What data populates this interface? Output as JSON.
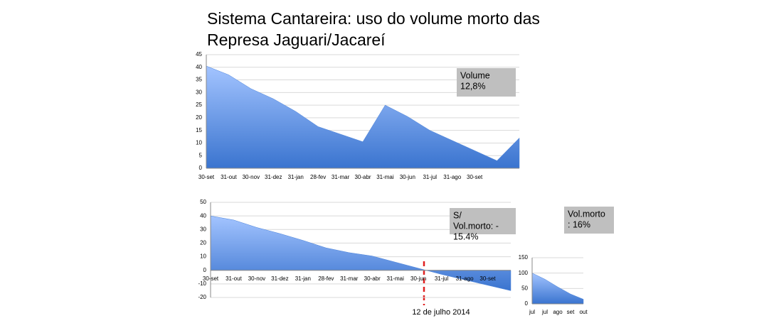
{
  "title": [
    "Sistema Cantareira: uso do volume morto das",
    "Represa Jaguari/Jacareí"
  ],
  "chart_data": [
    {
      "type": "area",
      "categories": [
        "30-set",
        "31-out",
        "30-nov",
        "31-dez",
        "31-jan",
        "28-fev",
        "31-mar",
        "30-abr",
        "31-mai",
        "30-jun",
        "31-jul",
        "31-ago",
        "30-set",
        null,
        null
      ],
      "values": [
        40.5,
        37,
        31.5,
        27.5,
        22.5,
        16.5,
        13.5,
        10.5,
        25,
        20.5,
        15,
        11,
        7,
        3,
        12
      ],
      "color": "#4a82d9",
      "ylim": [
        0,
        45
      ],
      "yticks": [
        0,
        5,
        10,
        15,
        20,
        25,
        30,
        35,
        40,
        45
      ],
      "grid": true,
      "annotation": [
        "Volume",
        "12,8%"
      ]
    },
    {
      "type": "area",
      "categories": [
        "30-set",
        "31-out",
        "30-nov",
        "31-dez",
        "31-jan",
        "28-fev",
        "31-mar",
        "30-abr",
        "31-mai",
        "30-jun",
        "31-jul",
        "31-ago",
        "30-set",
        null
      ],
      "values": [
        40,
        37,
        31.5,
        27,
        22,
        16.5,
        13,
        10.5,
        6,
        1.5,
        -3,
        -7,
        -11,
        -15
      ],
      "color": "#4a82d9",
      "ylim": [
        -20,
        50
      ],
      "yticks": [
        -20,
        -10,
        0,
        10,
        20,
        30,
        40,
        50
      ],
      "grid": true,
      "annotation": [
        "S/",
        "Vol.morto: -",
        "15.4%"
      ],
      "marker": "12 de julho 2014"
    },
    {
      "type": "area",
      "categories": [
        "jul",
        "jul",
        "ago",
        "set",
        "out"
      ],
      "values": [
        100,
        80,
        55,
        32,
        15
      ],
      "color": "#4a82d9",
      "ylim": [
        0,
        150
      ],
      "yticks": [
        0,
        50,
        100,
        150
      ],
      "grid": true,
      "annotation": [
        "Vol.morto",
        ": 16%"
      ]
    }
  ]
}
